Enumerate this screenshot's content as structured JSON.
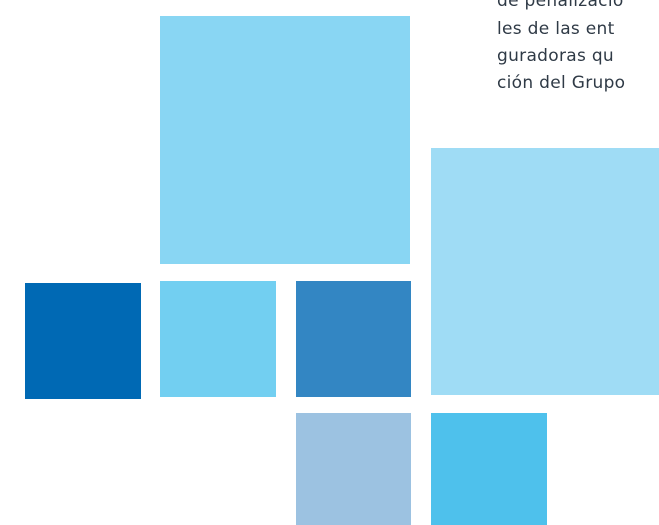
{
  "text_lines": [
    "de penalizació",
    "les de las ent",
    "guradoras qu",
    "ción del Grupo"
  ]
}
